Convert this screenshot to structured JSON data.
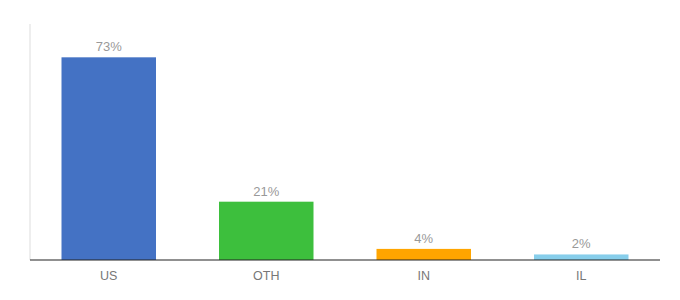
{
  "chart_data": {
    "type": "bar",
    "categories": [
      "US",
      "OTH",
      "IN",
      "IL"
    ],
    "values": [
      73,
      21,
      4,
      2
    ],
    "value_labels": [
      "73%",
      "21%",
      "4%",
      "2%"
    ],
    "colors": [
      "#4472C4",
      "#3DBF3D",
      "#FFA500",
      "#87CEEB"
    ],
    "ylim": [
      0,
      85
    ],
    "data_labels": true,
    "tick_labels": "x"
  }
}
